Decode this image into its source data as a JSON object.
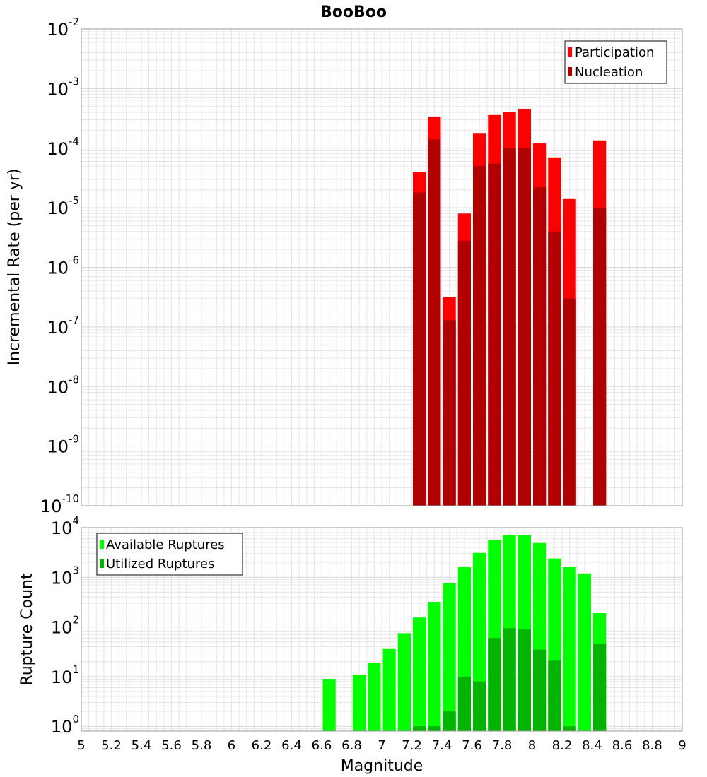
{
  "title": "BooBoo",
  "xlabel": "Magnitude",
  "colors": {
    "participation": "#ff0000",
    "nucleation": "#b00000",
    "available": "#00ff00",
    "utilized": "#00b400",
    "grid": "#e6e6e6",
    "border": "#999999"
  },
  "x_ticks": [
    "5",
    "5.2",
    "5.4",
    "5.6",
    "5.8",
    "6",
    "6.2",
    "6.4",
    "6.6",
    "6.8",
    "7",
    "7.2",
    "7.4",
    "7.6",
    "7.8",
    "8",
    "8.2",
    "8.4",
    "8.6",
    "8.8",
    "9"
  ],
  "chart_data": [
    {
      "type": "bar",
      "title": "BooBoo",
      "ylabel": "Incremental Rate (per yr)",
      "xlim": [
        5,
        9
      ],
      "ylim": [
        1e-10,
        0.01
      ],
      "yscale": "log",
      "bin_width": 0.1,
      "ytick_exponents": [
        "-10",
        "-9",
        "-8",
        "-7",
        "-6",
        "-5",
        "-4",
        "-3",
        "-2"
      ],
      "legend_position": "top-right",
      "x": [
        7.25,
        7.35,
        7.45,
        7.55,
        7.65,
        7.75,
        7.85,
        7.95,
        8.05,
        8.15,
        8.25,
        8.45
      ],
      "series": [
        {
          "name": "Participation",
          "values": [
            4e-05,
            0.00034,
            3.2e-07,
            8e-06,
            0.00018,
            0.00036,
            0.0004,
            0.00045,
            0.00012,
            7e-05,
            1.4e-05,
            0.000135
          ]
        },
        {
          "name": "Nucleation",
          "values": [
            1.8e-05,
            0.00014,
            1.3e-07,
            2.8e-06,
            5e-05,
            5.5e-05,
            0.0001,
            0.0001,
            2.2e-05,
            4e-06,
            3e-07,
            1e-05
          ]
        }
      ]
    },
    {
      "type": "bar",
      "ylabel": "Rupture Count",
      "xlabel": "Magnitude",
      "xlim": [
        5,
        9
      ],
      "ylim": [
        0.8,
        10000
      ],
      "yscale": "log",
      "bin_width": 0.1,
      "ytick_exponents": [
        "0",
        "1",
        "2",
        "3",
        "4"
      ],
      "legend_position": "top-left",
      "x": [
        6.65,
        6.85,
        6.95,
        7.05,
        7.15,
        7.25,
        7.35,
        7.45,
        7.55,
        7.65,
        7.75,
        7.85,
        7.95,
        8.05,
        8.15,
        8.25,
        8.35,
        8.45
      ],
      "series": [
        {
          "name": "Available Ruptures",
          "values": [
            9,
            11,
            19,
            36,
            75,
            155,
            320,
            760,
            1600,
            3100,
            5700,
            7200,
            7000,
            4900,
            2400,
            1600,
            1200,
            190
          ]
        },
        {
          "name": "Utilized Ruptures",
          "values": [
            0,
            0,
            0,
            0,
            0,
            1,
            1,
            2,
            10,
            8,
            60,
            95,
            90,
            35,
            21,
            1,
            0,
            45
          ]
        }
      ]
    }
  ]
}
